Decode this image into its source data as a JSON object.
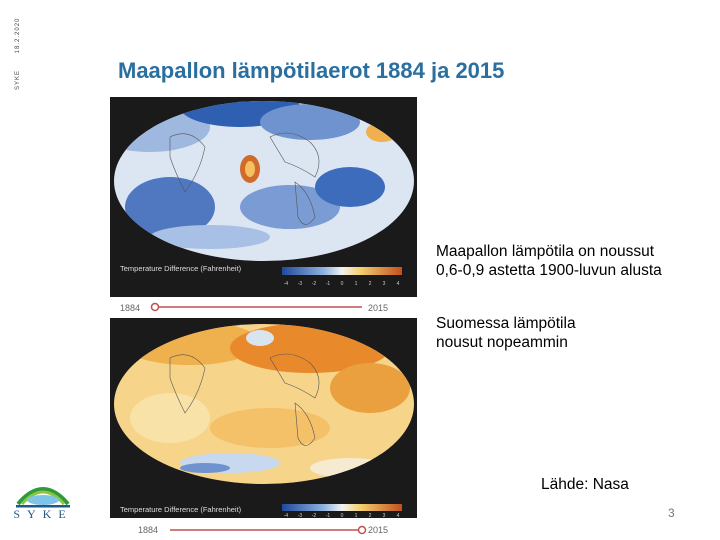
{
  "sidebar": {
    "meta_left": "SYKE",
    "meta_right": "18.2.2020",
    "logo_text": "SYKE"
  },
  "slide": {
    "title": "Maapallon lämpötilaerot 1884 ja 2015",
    "bullets": [
      "Maapallon lämpötila on noussut\n0,6-0,9 astetta 1900-luvun alusta",
      "Suomessa lämpötila\nnousut nopeammin"
    ],
    "source": "Lähde: Nasa",
    "page_number": "3"
  },
  "maps": [
    {
      "legend_title": "Temperature Difference (Fahrenheit)",
      "ticks": [
        "-4",
        "-3",
        "-2",
        "-1",
        "0",
        "1",
        "2",
        "3",
        "4"
      ],
      "timeline_start": "1884",
      "timeline_end": "2015",
      "timeline_position": 0.0
    },
    {
      "legend_title": "Temperature Difference (Fahrenheit)",
      "ticks": [
        "-4",
        "-3",
        "-2",
        "-1",
        "0",
        "1",
        "2",
        "3",
        "4"
      ],
      "timeline_start": "1884",
      "timeline_end": "2015",
      "timeline_position": 1.0
    }
  ],
  "colors": {
    "title": "#2a6fa0",
    "cold": "#2f5fb0",
    "warm": "#e07a1e",
    "timeline_handle": "#c0504d"
  }
}
